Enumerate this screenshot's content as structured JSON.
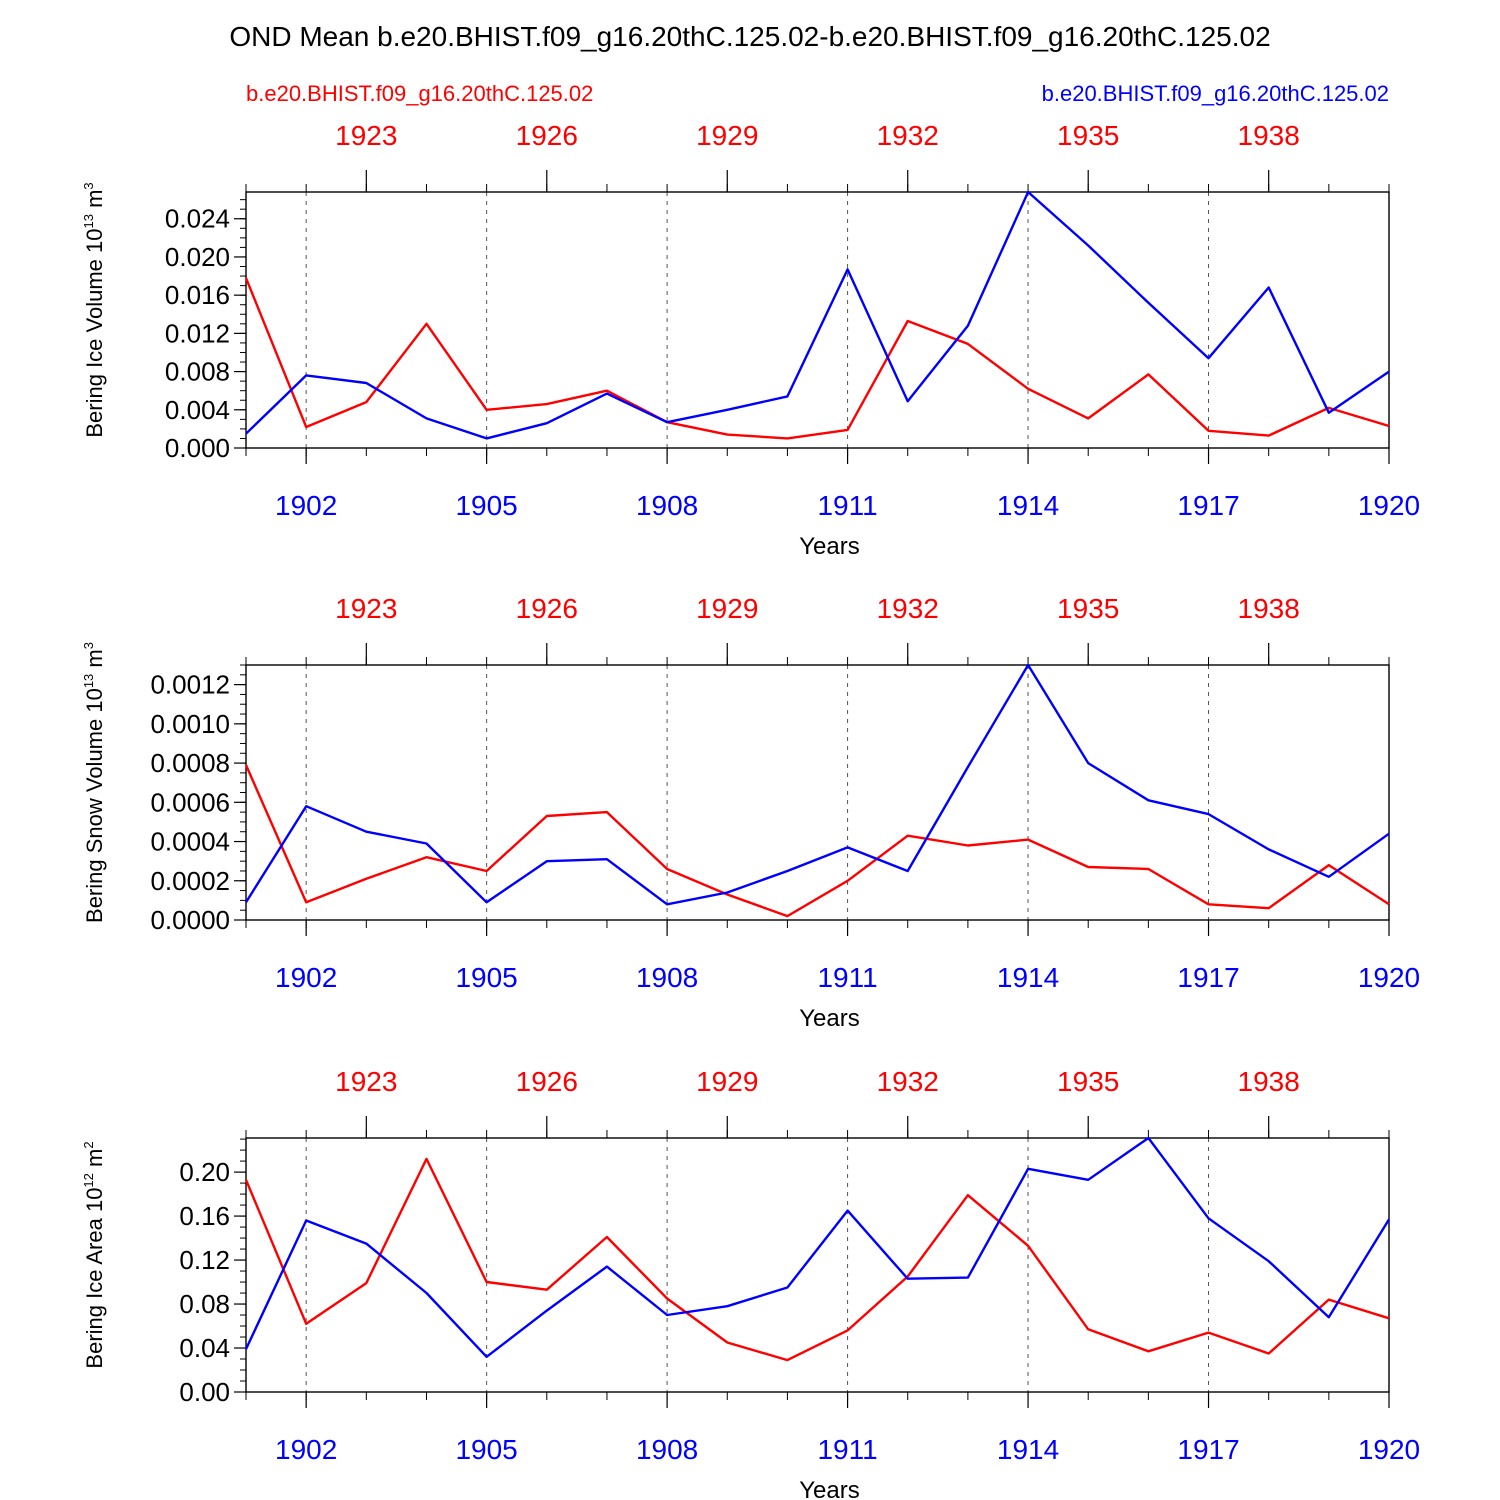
{
  "figure": {
    "title": "OND Mean b.e20.BHIST.f09_g16.20thC.125.02-b.e20.BHIST.f09_g16.20thC.125.02",
    "left_label": "b.e20.BHIST.f09_g16.20thC.125.02",
    "right_label": "b.e20.BHIST.f09_g16.20thC.125.02"
  },
  "colors": {
    "series_a": "#ff0000",
    "series_b": "#0000ff",
    "axis": "#000000",
    "grid": "#555555"
  },
  "chart_data": [
    {
      "type": "line",
      "ylabel": "Bering Ice Volume 10",
      "ylabel_sup": "13",
      "ylabel_unit": " m",
      "ylabel_unit_sup": "3",
      "xlabel": "Years",
      "x": [
        1901,
        1902,
        1903,
        1904,
        1905,
        1906,
        1907,
        1908,
        1909,
        1910,
        1911,
        1912,
        1913,
        1914,
        1915,
        1916,
        1917,
        1918,
        1919,
        1920
      ],
      "xlim": [
        1901,
        1920
      ],
      "ylim": [
        0,
        0.0268
      ],
      "yticks": [
        "0.000",
        "0.004",
        "0.008",
        "0.012",
        "0.016",
        "0.020",
        "0.024"
      ],
      "ytick_values": [
        0,
        0.004,
        0.008,
        0.012,
        0.016,
        0.02,
        0.024
      ],
      "ytick_minor_step": 0.001,
      "bottom_ticks": [
        "1902",
        "1905",
        "1908",
        "1911",
        "1914",
        "1917",
        "1920"
      ],
      "bottom_tick_values": [
        1902,
        1905,
        1908,
        1911,
        1914,
        1917,
        1920
      ],
      "top_ticks": [
        "1923",
        "1926",
        "1929",
        "1932",
        "1935",
        "1938"
      ],
      "top_tick_values": [
        1903,
        1906,
        1909,
        1912,
        1915,
        1918
      ],
      "series": [
        {
          "name": "b.e20.BHIST.f09_g16.20thC.125.02 (red)",
          "color": "#ff0000",
          "values": [
            0.0178,
            0.0022,
            0.0048,
            0.013,
            0.004,
            0.0046,
            0.006,
            0.0027,
            0.0014,
            0.001,
            0.0019,
            0.0133,
            0.0109,
            0.0062,
            0.0031,
            0.0077,
            0.0018,
            0.0013,
            0.0042,
            0.0023
          ]
        },
        {
          "name": "b.e20.BHIST.f09_g16.20thC.125.02 (blue)",
          "color": "#0000ff",
          "values": [
            0.0015,
            0.0076,
            0.0068,
            0.0031,
            0.001,
            0.0026,
            0.0057,
            0.0027,
            0.004,
            0.0054,
            0.0187,
            0.0049,
            0.0128,
            0.0268,
            0.0212,
            0.0152,
            0.0094,
            0.0168,
            0.0037,
            0.008
          ]
        }
      ]
    },
    {
      "type": "line",
      "ylabel": "Bering Snow Volume 10",
      "ylabel_sup": "13",
      "ylabel_unit": " m",
      "ylabel_unit_sup": "3",
      "xlabel": "Years",
      "x": [
        1901,
        1902,
        1903,
        1904,
        1905,
        1906,
        1907,
        1908,
        1909,
        1910,
        1911,
        1912,
        1913,
        1914,
        1915,
        1916,
        1917,
        1918,
        1919,
        1920
      ],
      "xlim": [
        1901,
        1920
      ],
      "ylim": [
        0,
        0.0013
      ],
      "yticks": [
        "0.0000",
        "0.0002",
        "0.0004",
        "0.0006",
        "0.0008",
        "0.0010",
        "0.0012"
      ],
      "ytick_values": [
        0,
        0.0002,
        0.0004,
        0.0006,
        0.0008,
        0.001,
        0.0012
      ],
      "ytick_minor_step": 5e-05,
      "bottom_ticks": [
        "1902",
        "1905",
        "1908",
        "1911",
        "1914",
        "1917",
        "1920"
      ],
      "bottom_tick_values": [
        1902,
        1905,
        1908,
        1911,
        1914,
        1917,
        1920
      ],
      "top_ticks": [
        "1923",
        "1926",
        "1929",
        "1932",
        "1935",
        "1938"
      ],
      "top_tick_values": [
        1903,
        1906,
        1909,
        1912,
        1915,
        1918
      ],
      "series": [
        {
          "name": "b.e20.BHIST.f09_g16.20thC.125.02 (red)",
          "color": "#ff0000",
          "values": [
            0.00079,
            9e-05,
            0.00021,
            0.00032,
            0.00025,
            0.00053,
            0.00055,
            0.00026,
            0.00013,
            2e-05,
            0.0002,
            0.00043,
            0.00038,
            0.00041,
            0.00027,
            0.00026,
            8e-05,
            6e-05,
            0.00028,
            8e-05
          ]
        },
        {
          "name": "b.e20.BHIST.f09_g16.20thC.125.02 (blue)",
          "color": "#0000ff",
          "values": [
            9e-05,
            0.00058,
            0.00045,
            0.00039,
            9e-05,
            0.0003,
            0.00031,
            8e-05,
            0.00014,
            0.00025,
            0.00037,
            0.00025,
            0.00078,
            0.0013,
            0.0008,
            0.00061,
            0.00054,
            0.00036,
            0.00022,
            0.00044
          ]
        }
      ]
    },
    {
      "type": "line",
      "ylabel": "Bering Ice Area 10",
      "ylabel_sup": "12",
      "ylabel_unit": " m",
      "ylabel_unit_sup": "2",
      "xlabel": "Years",
      "x": [
        1901,
        1902,
        1903,
        1904,
        1905,
        1906,
        1907,
        1908,
        1909,
        1910,
        1911,
        1912,
        1913,
        1914,
        1915,
        1916,
        1917,
        1918,
        1919,
        1920
      ],
      "xlim": [
        1901,
        1920
      ],
      "ylim": [
        0,
        0.231
      ],
      "yticks": [
        "0.00",
        "0.04",
        "0.08",
        "0.12",
        "0.16",
        "0.20"
      ],
      "ytick_values": [
        0,
        0.04,
        0.08,
        0.12,
        0.16,
        0.2
      ],
      "ytick_minor_step": 0.01,
      "bottom_ticks": [
        "1902",
        "1905",
        "1908",
        "1911",
        "1914",
        "1917",
        "1920"
      ],
      "bottom_tick_values": [
        1902,
        1905,
        1908,
        1911,
        1914,
        1917,
        1920
      ],
      "top_ticks": [
        "1923",
        "1926",
        "1929",
        "1932",
        "1935",
        "1938"
      ],
      "top_tick_values": [
        1903,
        1906,
        1909,
        1912,
        1915,
        1918
      ],
      "series": [
        {
          "name": "b.e20.BHIST.f09_g16.20thC.125.02 (red)",
          "color": "#ff0000",
          "values": [
            0.193,
            0.062,
            0.099,
            0.212,
            0.1,
            0.093,
            0.141,
            0.085,
            0.045,
            0.029,
            0.056,
            0.105,
            0.179,
            0.133,
            0.057,
            0.037,
            0.054,
            0.035,
            0.084,
            0.067
          ]
        },
        {
          "name": "b.e20.BHIST.f09_g16.20thC.125.02 (blue)",
          "color": "#0000ff",
          "values": [
            0.039,
            0.156,
            0.135,
            0.09,
            0.032,
            0.074,
            0.114,
            0.07,
            0.078,
            0.095,
            0.165,
            0.103,
            0.104,
            0.203,
            0.193,
            0.231,
            0.158,
            0.119,
            0.068,
            0.157
          ]
        }
      ]
    }
  ]
}
